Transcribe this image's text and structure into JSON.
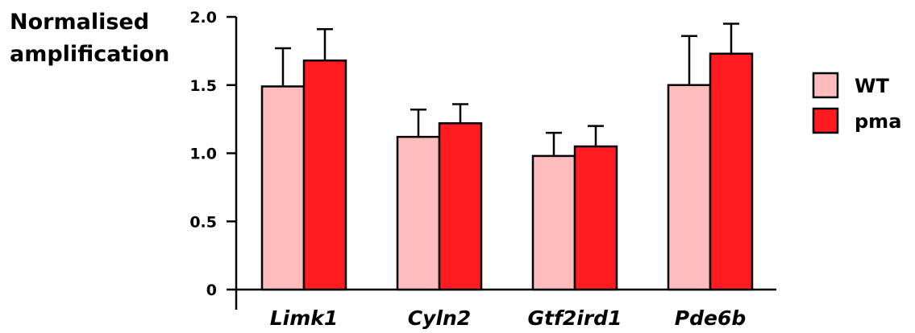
{
  "chart_data": {
    "type": "bar",
    "title": "",
    "ylabel_lines": [
      "Normalised",
      "amplification"
    ],
    "xlabel": "",
    "categories": [
      "Limk1",
      "Cyln2",
      "Gtf2ird1",
      "Pde6b"
    ],
    "ylim": [
      0,
      2.0
    ],
    "yticks": [
      0,
      0.5,
      1.0,
      1.5,
      2.0
    ],
    "ytick_labels": [
      "0",
      "0.5",
      "1.0",
      "1.5",
      "2.0"
    ],
    "grid": false,
    "legend_position": "right",
    "series": [
      {
        "name": "WT",
        "color": "#ffbcbd",
        "values": [
          1.49,
          1.12,
          0.98,
          1.5
        ],
        "errors": [
          0.28,
          0.2,
          0.17,
          0.36
        ]
      },
      {
        "name": "pma",
        "color": "#ff1b1f",
        "values": [
          1.68,
          1.22,
          1.05,
          1.73
        ],
        "errors": [
          0.23,
          0.14,
          0.15,
          0.22
        ]
      }
    ]
  }
}
